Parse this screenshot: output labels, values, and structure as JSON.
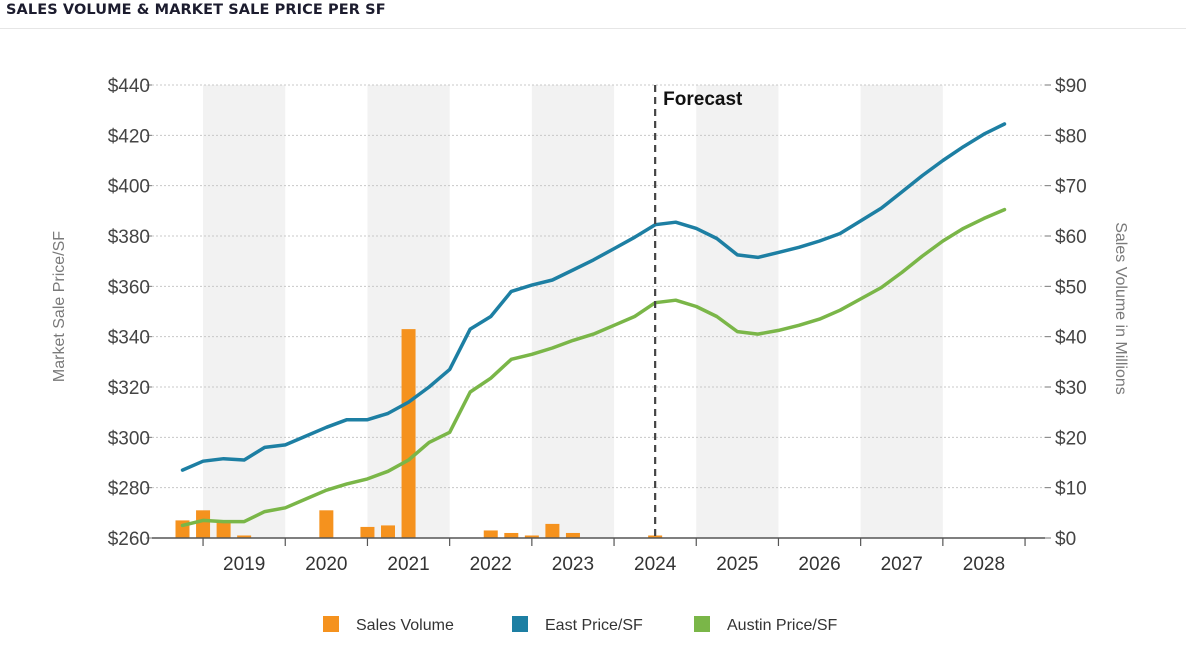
{
  "title": "SALES VOLUME & MARKET SALE PRICE PER SF",
  "chart_data": {
    "type": "line",
    "title": "SALES VOLUME & MARKET SALE PRICE PER SF",
    "ylabel": "Market Sale Price/SF",
    "y2label": "Sales Volume in Millions",
    "ylim": [
      260,
      440
    ],
    "y2lim": [
      0,
      90
    ],
    "y_ticks": [
      "$260",
      "$280",
      "$300",
      "$320",
      "$340",
      "$360",
      "$380",
      "$400",
      "$420",
      "$440"
    ],
    "y2_ticks": [
      "$0",
      "$10",
      "$20",
      "$30",
      "$40",
      "$50",
      "$60",
      "$70",
      "$80",
      "$90"
    ],
    "x_ticks": [
      "2019",
      "2020",
      "2021",
      "2022",
      "2023",
      "2024",
      "2025",
      "2026",
      "2027",
      "2028"
    ],
    "xlim": [
      2018,
      2028.5
    ],
    "grid": true,
    "forecast": {
      "x": 2024,
      "label": "Forecast"
    },
    "legend_position": "bottom",
    "legend": [
      "Sales Volume",
      "East Price/SF",
      "Austin Price/SF"
    ],
    "series": [
      {
        "name": "Sales Volume",
        "type": "bar",
        "axis": "right",
        "color": "#f5921e",
        "x": [
          2018.25,
          2018.5,
          2018.75,
          2019.0,
          2020.0,
          2020.5,
          2020.75,
          2021.0,
          2022.0,
          2022.25,
          2022.5,
          2022.75,
          2023.0,
          2024.0
        ],
        "values": [
          3.5,
          5.5,
          3.5,
          0.5,
          5.5,
          2.2,
          2.5,
          41.5,
          1.5,
          1.0,
          0.5,
          2.8,
          1.0,
          0.5
        ]
      },
      {
        "name": "East Price/SF",
        "type": "line",
        "axis": "left",
        "color": "#1d7fa3",
        "x": [
          2018.25,
          2018.5,
          2018.75,
          2019.0,
          2019.25,
          2019.5,
          2019.75,
          2020.0,
          2020.25,
          2020.5,
          2020.75,
          2021.0,
          2021.25,
          2021.5,
          2021.75,
          2022.0,
          2022.25,
          2022.5,
          2022.75,
          2023.0,
          2023.25,
          2023.5,
          2023.75,
          2024.0,
          2024.25,
          2024.5,
          2024.75,
          2025.0,
          2025.25,
          2025.5,
          2025.75,
          2026.0,
          2026.25,
          2026.5,
          2026.75,
          2027.0,
          2027.25,
          2027.5,
          2027.75,
          2028.0,
          2028.25
        ],
        "values": [
          287,
          290.5,
          291.5,
          291,
          296,
          297,
          300.5,
          304,
          307,
          307,
          309.5,
          314,
          320,
          327,
          343,
          348,
          358,
          360.5,
          362.5,
          366.5,
          370.5,
          375,
          379.5,
          384.5,
          385.5,
          383,
          379,
          372.5,
          371.5,
          373.5,
          375.5,
          378,
          381,
          386,
          391,
          397.5,
          404,
          410,
          415.5,
          420.5,
          424.5
        ]
      },
      {
        "name": "Austin Price/SF",
        "type": "line",
        "axis": "left",
        "color": "#7ab648",
        "x": [
          2018.25,
          2018.5,
          2018.75,
          2019.0,
          2019.25,
          2019.5,
          2019.75,
          2020.0,
          2020.25,
          2020.5,
          2020.75,
          2021.0,
          2021.25,
          2021.5,
          2021.75,
          2022.0,
          2022.25,
          2022.5,
          2022.75,
          2023.0,
          2023.25,
          2023.5,
          2023.75,
          2024.0,
          2024.25,
          2024.5,
          2024.75,
          2025.0,
          2025.25,
          2025.5,
          2025.75,
          2026.0,
          2026.25,
          2026.5,
          2026.75,
          2027.0,
          2027.25,
          2027.5,
          2027.75,
          2028.0,
          2028.25
        ],
        "values": [
          265,
          267,
          266.5,
          266.5,
          270.5,
          272,
          275.5,
          279,
          281.5,
          283.5,
          286.5,
          291,
          298,
          302,
          318,
          323.5,
          331,
          333,
          335.5,
          338.5,
          341,
          344.5,
          348,
          353.5,
          354.5,
          352,
          348,
          342,
          341,
          342.5,
          344.5,
          347,
          350.5,
          355,
          359.5,
          365.5,
          372,
          378,
          383,
          387,
          390.5
        ]
      }
    ]
  }
}
